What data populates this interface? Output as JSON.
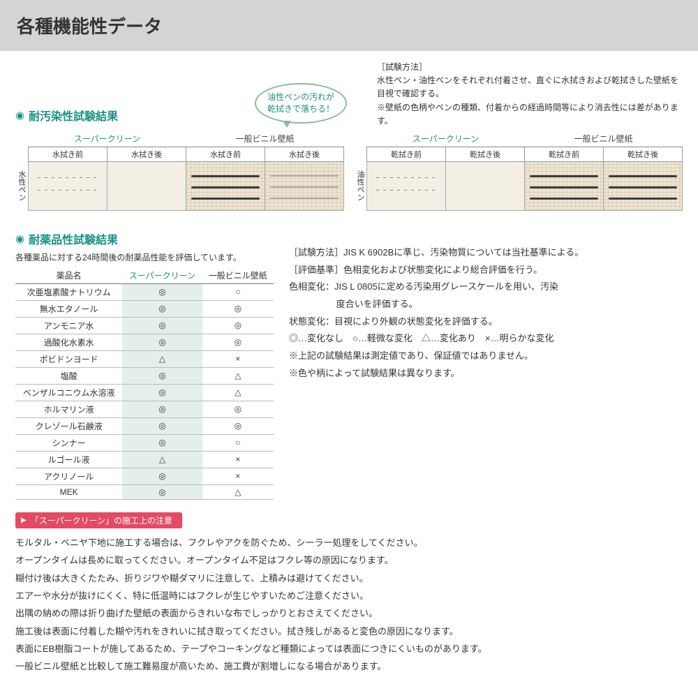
{
  "title": "各種機能性データ",
  "bubble": "油性ペンの汚れが\n乾拭きで落ちる！",
  "section1_title": "耐汚染性試験結果",
  "method": {
    "label": "［試験方法］",
    "line1": "水性ペン・油性ペンをそれぞれ付着させ、直ぐに水拭きおよび乾拭きした壁紙を目視で確認する。",
    "line2": "※壁紙の色柄やペンの種類、付着からの経過時間等により消去性には差があります。"
  },
  "stain": {
    "left": {
      "side": "水性ペン",
      "grp1": "スーパークリーン",
      "grp2": "一般ビニル壁紙",
      "cols": [
        "水拭き前",
        "水拭き後",
        "水拭き前",
        "水拭き後"
      ]
    },
    "right": {
      "side": "油性ペン",
      "grp1": "スーパークリーン",
      "grp2": "一般ビニル壁紙",
      "cols": [
        "乾拭き前",
        "乾拭き後",
        "乾拭き前",
        "乾拭き後"
      ]
    }
  },
  "section2_title": "耐薬品性試験結果",
  "chem_desc": "各種薬品に対する24時間後の耐薬品性能を評価しています。",
  "chem_headers": [
    "薬品名",
    "スーパークリーン",
    "一般ビニル壁紙"
  ],
  "chem_rows": [
    [
      "次亜塩素酸ナトリウム",
      "◎",
      "○"
    ],
    [
      "無水エタノール",
      "◎",
      "◎"
    ],
    [
      "アンモニア水",
      "◎",
      "◎"
    ],
    [
      "過酸化水素水",
      "◎",
      "◎"
    ],
    [
      "ポビドンヨード",
      "△",
      "×"
    ],
    [
      "塩酸",
      "◎",
      "△"
    ],
    [
      "ベンザルコニウム水溶液",
      "◎",
      "△"
    ],
    [
      "ホルマリン液",
      "◎",
      "◎"
    ],
    [
      "クレゾール石鹸液",
      "◎",
      "◎"
    ],
    [
      "シンナー",
      "◎",
      "○"
    ],
    [
      "ルゴール液",
      "△",
      "×"
    ],
    [
      "アクリノール",
      "◎",
      "×"
    ],
    [
      "MEK",
      "◎",
      "△"
    ]
  ],
  "chem_right": {
    "l1": "［試験方法］JIS K 6902Bに準じ、汚染物質については当社基準による。",
    "l2": "［評価基準］色相変化および状態変化により総合評価を行う。",
    "l3a": "色相変化：JIS L 0805に定める汚染用グレースケールを用い、汚染",
    "l3b": "度合いを評価する。",
    "l4": "状態変化：目視により外観の状態変化を評価する。",
    "l5": "◎…変化なし　○…軽微な変化　△…変化あり　×…明らかな変化",
    "l6": "※上記の試験結果は測定値であり、保証値ではありません。",
    "l7": "※色や柄によって試験結果は異なります。"
  },
  "badge": "「スーパークリーン」の施工上の注意",
  "notes": [
    "モルタル・ベニヤ下地に施工する場合は、フクレやアクを防ぐため、シーラー処理をしてください。",
    "オープンタイムは長めに取ってください。オープンタイム不足はフクレ等の原因になります。",
    "糊付け後は大きくたたみ、折りジワや糊ダマリに注意して、上積みは避けてください。",
    "エアーや水分が抜けにくく、特に低温時にはフクレが生じやすいためご注意ください。",
    "出隅の納めの際は折り曲げた壁紙の表面からきれいな布でしっかりとおさえてください。",
    "施工後は表面に付着した糊や汚れをきれいに拭き取ってください。拭き残しがあると変色の原因になります。",
    "表面にEB樹脂コートが施してあるため、テープやコーキングなど種類によっては表面につきにくいものがあります。",
    "一般ビニル壁紙と比較して施工難易度が高いため、施工費が割増しになる場合があります。"
  ]
}
